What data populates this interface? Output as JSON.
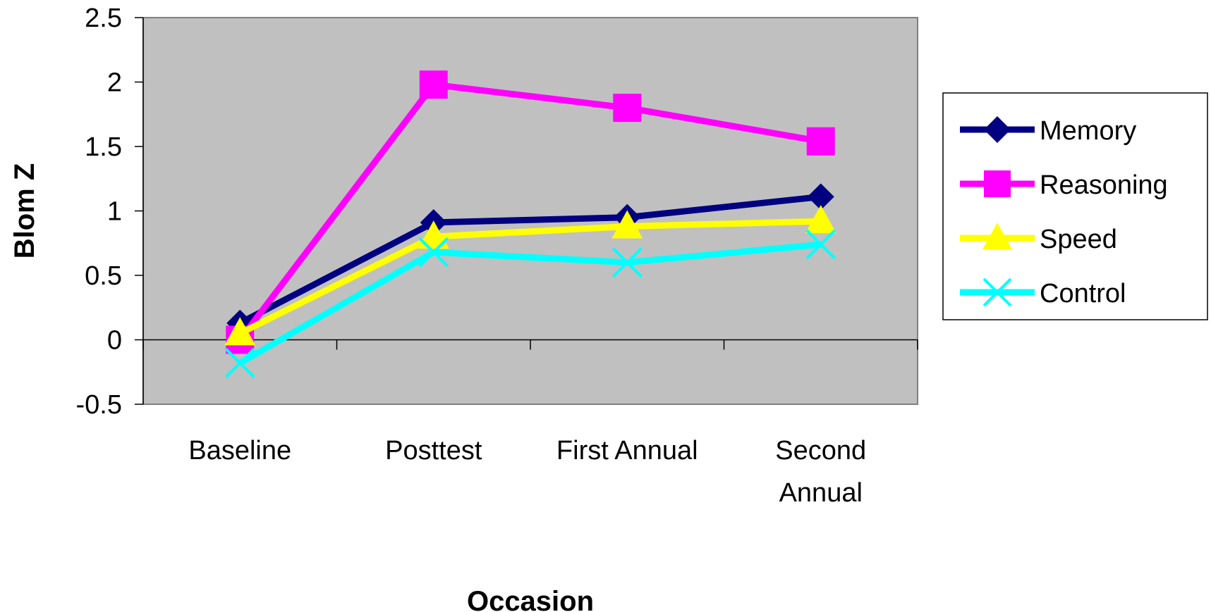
{
  "chart_data": {
    "type": "line",
    "title": "",
    "xlabel": "Occasion",
    "ylabel": "Blom Z",
    "ylim": [
      -0.5,
      2.5
    ],
    "yticks": [
      -0.5,
      0,
      0.5,
      1,
      1.5,
      2,
      2.5
    ],
    "ytick_labels": [
      "-0.5",
      "0",
      "0.5",
      "1",
      "1.5",
      "2",
      "2.5"
    ],
    "categories": [
      [
        "Baseline"
      ],
      [
        "Posttest"
      ],
      [
        "First Annual"
      ],
      [
        "Second",
        "Annual"
      ]
    ],
    "plot_background": "#c0c0c0",
    "grid": false,
    "legend_position": "right",
    "series": [
      {
        "name": "Memory",
        "values": [
          0.13,
          0.91,
          0.95,
          1.11
        ],
        "color": "#000080",
        "marker": "diamond"
      },
      {
        "name": "Reasoning",
        "values": [
          0.0,
          1.98,
          1.8,
          1.54
        ],
        "color": "#ff00ff",
        "marker": "square"
      },
      {
        "name": "Speed",
        "values": [
          0.05,
          0.8,
          0.88,
          0.92
        ],
        "color": "#ffff00",
        "marker": "triangle"
      },
      {
        "name": "Control",
        "values": [
          -0.18,
          0.68,
          0.6,
          0.74
        ],
        "color": "#00ffff",
        "marker": "x"
      }
    ]
  }
}
